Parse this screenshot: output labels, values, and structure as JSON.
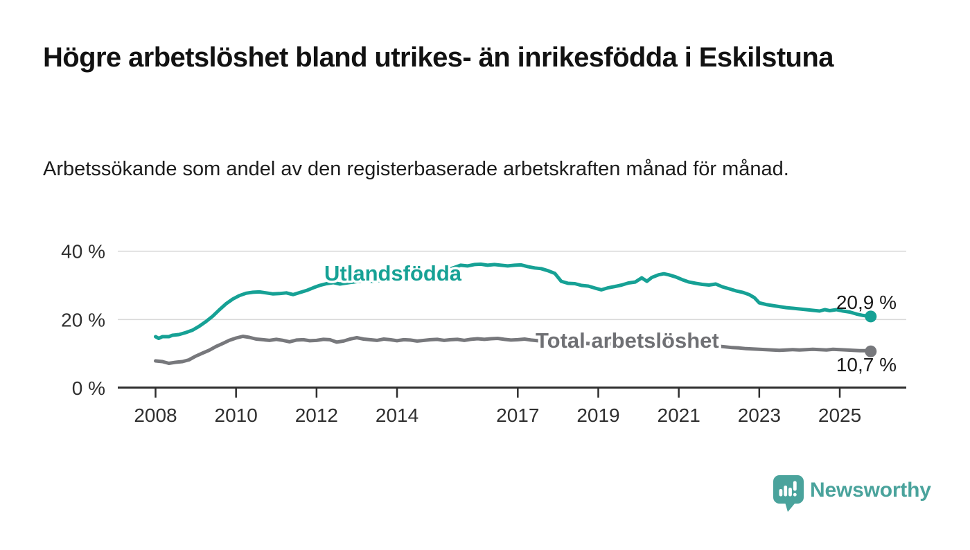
{
  "header": {
    "title": "Högre arbetslöshet bland utrikes- än inrikesfödda i Eskilstuna",
    "subtitle": "Arbetssökande som andel av den registerbaserade arbetskraften månad för månad."
  },
  "chart_data": {
    "type": "line",
    "title": "Högre arbetslöshet bland utrikes- än inrikesfödda i Eskilstuna",
    "xlabel": "",
    "ylabel": "",
    "x_unit": "year (monthly data)",
    "xlim": [
      2007.1,
      2026.6
    ],
    "ylim": [
      0,
      40
    ],
    "grid": "horizontal",
    "legend": "inline-labels",
    "grid_color": "#d9d9d9",
    "axis_color": "#2e2e2e",
    "y_ticks": [
      {
        "value": 0,
        "label": "0 %"
      },
      {
        "value": 20,
        "label": "20 %"
      },
      {
        "value": 40,
        "label": "40 %"
      }
    ],
    "x_ticks": [
      {
        "value": 2008,
        "label": "2008"
      },
      {
        "value": 2010,
        "label": "2010"
      },
      {
        "value": 2012,
        "label": "2012"
      },
      {
        "value": 2014,
        "label": "2014"
      },
      {
        "value": 2017,
        "label": "2017"
      },
      {
        "value": 2019,
        "label": "2019"
      },
      {
        "value": 2021,
        "label": "2021"
      },
      {
        "value": 2023,
        "label": "2023"
      },
      {
        "value": 2025,
        "label": "2025"
      }
    ],
    "series": [
      {
        "name": "Utlandsfödda",
        "color": "#16a195",
        "label_color": "#16a195",
        "end_label": "20,9 %",
        "end_value": 20.9,
        "points": [
          [
            2008.0,
            15.0
          ],
          [
            2008.08,
            14.5
          ],
          [
            2008.17,
            15.0
          ],
          [
            2008.33,
            15.0
          ],
          [
            2008.42,
            15.4
          ],
          [
            2008.58,
            15.6
          ],
          [
            2008.75,
            16.2
          ],
          [
            2008.92,
            16.9
          ],
          [
            2009.08,
            18.0
          ],
          [
            2009.25,
            19.4
          ],
          [
            2009.42,
            21.0
          ],
          [
            2009.58,
            22.8
          ],
          [
            2009.75,
            24.6
          ],
          [
            2009.92,
            26.0
          ],
          [
            2010.08,
            27.0
          ],
          [
            2010.25,
            27.7
          ],
          [
            2010.42,
            28.0
          ],
          [
            2010.58,
            28.1
          ],
          [
            2010.75,
            27.8
          ],
          [
            2010.92,
            27.5
          ],
          [
            2011.08,
            27.6
          ],
          [
            2011.25,
            27.8
          ],
          [
            2011.42,
            27.3
          ],
          [
            2011.58,
            27.9
          ],
          [
            2011.75,
            28.5
          ],
          [
            2011.92,
            29.3
          ],
          [
            2012.08,
            30.0
          ],
          [
            2012.25,
            30.5
          ],
          [
            2012.42,
            30.8
          ],
          [
            2012.58,
            30.4
          ],
          [
            2012.75,
            30.7
          ],
          [
            2012.92,
            31.0
          ],
          [
            2013.17,
            31.4
          ],
          [
            2013.42,
            31.2
          ],
          [
            2013.67,
            31.6
          ],
          [
            2013.92,
            32.0
          ],
          [
            2014.17,
            32.1
          ],
          [
            2014.42,
            32.4
          ],
          [
            2014.67,
            32.8
          ],
          [
            2014.92,
            33.3
          ],
          [
            2015.17,
            34.2
          ],
          [
            2015.42,
            35.2
          ],
          [
            2015.58,
            35.9
          ],
          [
            2015.75,
            35.7
          ],
          [
            2015.92,
            36.1
          ],
          [
            2016.08,
            36.2
          ],
          [
            2016.25,
            35.9
          ],
          [
            2016.42,
            36.1
          ],
          [
            2016.58,
            35.9
          ],
          [
            2016.75,
            35.7
          ],
          [
            2016.92,
            35.9
          ],
          [
            2017.08,
            36.0
          ],
          [
            2017.25,
            35.5
          ],
          [
            2017.42,
            35.1
          ],
          [
            2017.58,
            34.9
          ],
          [
            2017.75,
            34.3
          ],
          [
            2017.92,
            33.5
          ],
          [
            2018.08,
            31.2
          ],
          [
            2018.25,
            30.6
          ],
          [
            2018.42,
            30.5
          ],
          [
            2018.58,
            30.0
          ],
          [
            2018.75,
            29.8
          ],
          [
            2018.92,
            29.2
          ],
          [
            2019.08,
            28.7
          ],
          [
            2019.25,
            29.3
          ],
          [
            2019.42,
            29.7
          ],
          [
            2019.58,
            30.1
          ],
          [
            2019.75,
            30.7
          ],
          [
            2019.92,
            31.0
          ],
          [
            2020.08,
            32.2
          ],
          [
            2020.21,
            31.2
          ],
          [
            2020.33,
            32.3
          ],
          [
            2020.5,
            33.1
          ],
          [
            2020.63,
            33.4
          ],
          [
            2020.75,
            33.1
          ],
          [
            2020.92,
            32.5
          ],
          [
            2021.08,
            31.7
          ],
          [
            2021.25,
            31.0
          ],
          [
            2021.42,
            30.6
          ],
          [
            2021.58,
            30.3
          ],
          [
            2021.75,
            30.1
          ],
          [
            2021.92,
            30.4
          ],
          [
            2022.08,
            29.6
          ],
          [
            2022.25,
            29.0
          ],
          [
            2022.42,
            28.4
          ],
          [
            2022.58,
            28.0
          ],
          [
            2022.75,
            27.3
          ],
          [
            2022.88,
            26.4
          ],
          [
            2023.0,
            24.9
          ],
          [
            2023.17,
            24.4
          ],
          [
            2023.33,
            24.1
          ],
          [
            2023.5,
            23.8
          ],
          [
            2023.67,
            23.5
          ],
          [
            2023.83,
            23.3
          ],
          [
            2024.0,
            23.1
          ],
          [
            2024.17,
            22.9
          ],
          [
            2024.33,
            22.7
          ],
          [
            2024.5,
            22.5
          ],
          [
            2024.63,
            22.9
          ],
          [
            2024.75,
            22.6
          ],
          [
            2024.92,
            22.9
          ],
          [
            2025.08,
            22.5
          ],
          [
            2025.25,
            22.2
          ],
          [
            2025.42,
            21.6
          ],
          [
            2025.58,
            21.2
          ],
          [
            2025.77,
            20.9
          ]
        ]
      },
      {
        "name": "Total arbetslöshet",
        "color": "#77787c",
        "label_color": "#6f7074",
        "end_label": "10,7 %",
        "end_value": 10.7,
        "points": [
          [
            2008.0,
            7.9
          ],
          [
            2008.17,
            7.7
          ],
          [
            2008.33,
            7.2
          ],
          [
            2008.5,
            7.5
          ],
          [
            2008.67,
            7.7
          ],
          [
            2008.83,
            8.2
          ],
          [
            2009.0,
            9.3
          ],
          [
            2009.17,
            10.2
          ],
          [
            2009.33,
            11.0
          ],
          [
            2009.5,
            12.1
          ],
          [
            2009.67,
            13.0
          ],
          [
            2009.83,
            13.9
          ],
          [
            2010.0,
            14.6
          ],
          [
            2010.17,
            15.1
          ],
          [
            2010.33,
            14.8
          ],
          [
            2010.5,
            14.3
          ],
          [
            2010.67,
            14.1
          ],
          [
            2010.83,
            13.9
          ],
          [
            2011.0,
            14.2
          ],
          [
            2011.17,
            13.9
          ],
          [
            2011.33,
            13.5
          ],
          [
            2011.5,
            14.0
          ],
          [
            2011.67,
            14.1
          ],
          [
            2011.83,
            13.8
          ],
          [
            2012.0,
            13.9
          ],
          [
            2012.17,
            14.2
          ],
          [
            2012.33,
            14.1
          ],
          [
            2012.5,
            13.4
          ],
          [
            2012.67,
            13.7
          ],
          [
            2012.83,
            14.3
          ],
          [
            2013.0,
            14.7
          ],
          [
            2013.17,
            14.3
          ],
          [
            2013.33,
            14.1
          ],
          [
            2013.5,
            13.9
          ],
          [
            2013.67,
            14.3
          ],
          [
            2013.83,
            14.1
          ],
          [
            2014.0,
            13.8
          ],
          [
            2014.17,
            14.1
          ],
          [
            2014.33,
            14.0
          ],
          [
            2014.5,
            13.7
          ],
          [
            2014.67,
            13.9
          ],
          [
            2014.83,
            14.1
          ],
          [
            2015.0,
            14.2
          ],
          [
            2015.17,
            13.9
          ],
          [
            2015.33,
            14.1
          ],
          [
            2015.5,
            14.2
          ],
          [
            2015.67,
            13.9
          ],
          [
            2015.83,
            14.2
          ],
          [
            2016.0,
            14.4
          ],
          [
            2016.17,
            14.2
          ],
          [
            2016.33,
            14.4
          ],
          [
            2016.5,
            14.5
          ],
          [
            2016.67,
            14.2
          ],
          [
            2016.83,
            14.0
          ],
          [
            2017.0,
            14.1
          ],
          [
            2017.17,
            14.3
          ],
          [
            2017.33,
            14.0
          ],
          [
            2017.5,
            13.8
          ],
          [
            2017.75,
            13.6
          ],
          [
            2018.0,
            13.4
          ],
          [
            2018.25,
            13.2
          ],
          [
            2018.5,
            13.1
          ],
          [
            2018.75,
            13.0
          ],
          [
            2019.0,
            12.8
          ],
          [
            2019.25,
            12.9
          ],
          [
            2019.5,
            13.0
          ],
          [
            2019.75,
            13.2
          ],
          [
            2020.0,
            13.4
          ],
          [
            2020.25,
            13.7
          ],
          [
            2020.5,
            13.8
          ],
          [
            2020.75,
            13.6
          ],
          [
            2021.0,
            13.2
          ],
          [
            2021.25,
            12.9
          ],
          [
            2021.5,
            12.6
          ],
          [
            2021.75,
            12.4
          ],
          [
            2022.0,
            12.2
          ],
          [
            2022.17,
            12.0
          ],
          [
            2022.33,
            11.8
          ],
          [
            2022.5,
            11.7
          ],
          [
            2022.67,
            11.5
          ],
          [
            2022.83,
            11.4
          ],
          [
            2023.0,
            11.3
          ],
          [
            2023.17,
            11.2
          ],
          [
            2023.33,
            11.1
          ],
          [
            2023.5,
            11.0
          ],
          [
            2023.67,
            11.1
          ],
          [
            2023.83,
            11.2
          ],
          [
            2024.0,
            11.1
          ],
          [
            2024.17,
            11.2
          ],
          [
            2024.33,
            11.3
          ],
          [
            2024.5,
            11.2
          ],
          [
            2024.67,
            11.1
          ],
          [
            2024.83,
            11.3
          ],
          [
            2025.0,
            11.2
          ],
          [
            2025.17,
            11.1
          ],
          [
            2025.33,
            11.0
          ],
          [
            2025.5,
            10.9
          ],
          [
            2025.65,
            10.9
          ],
          [
            2025.77,
            10.7
          ]
        ]
      }
    ]
  },
  "footer": {
    "brand": "Newsworthy",
    "brand_color": "#4aa39c"
  }
}
